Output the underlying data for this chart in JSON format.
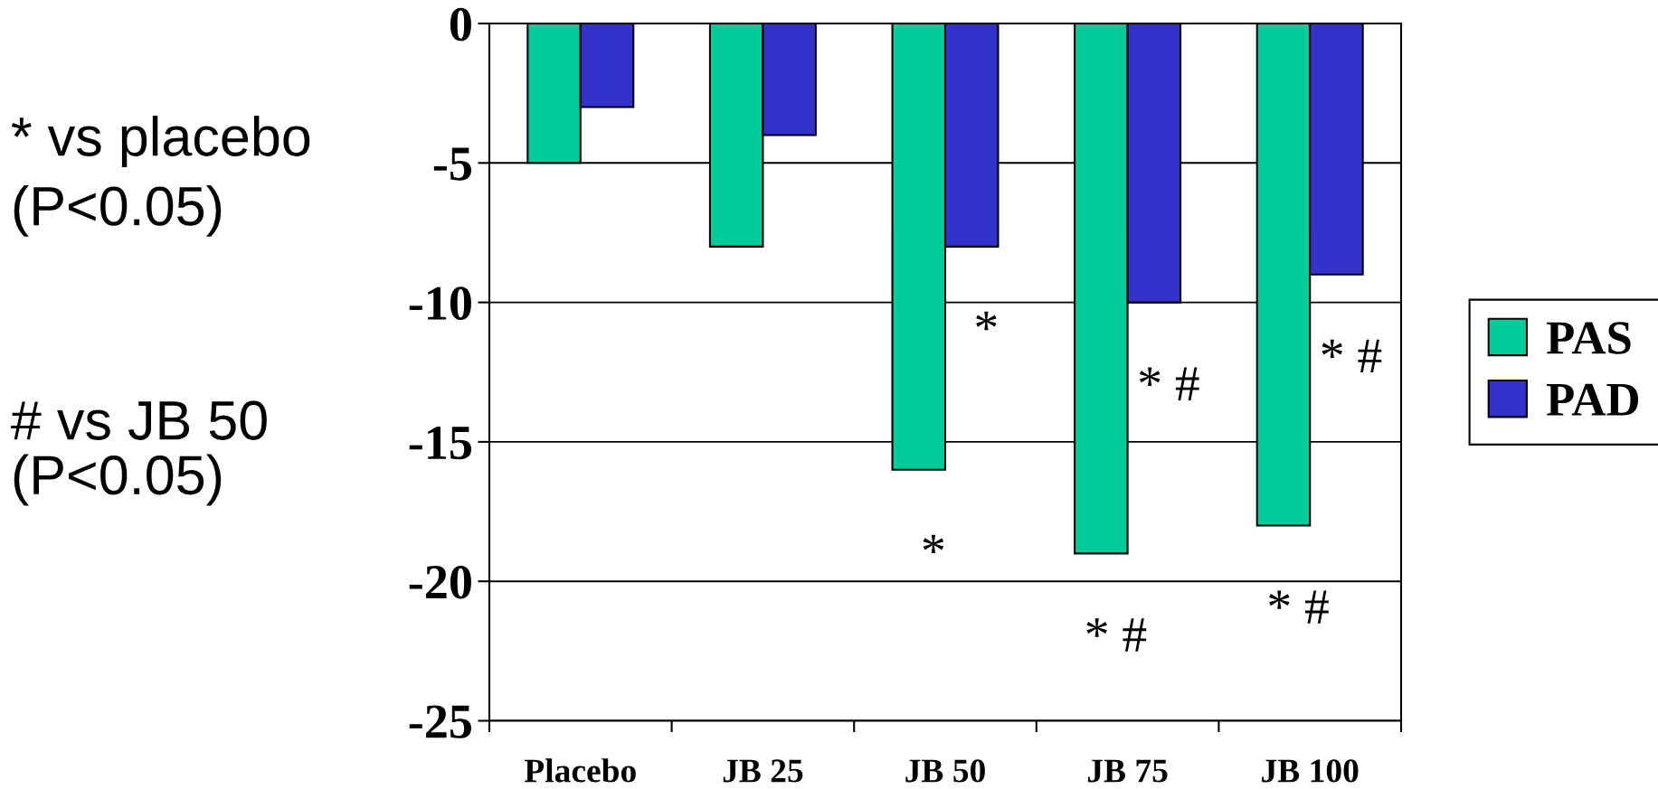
{
  "chart_data": {
    "type": "bar",
    "categories": [
      "Placebo",
      "JB 25",
      "JB 50",
      "JB 75",
      "JB 100"
    ],
    "series": [
      {
        "name": "PAS",
        "color": "#00cc99",
        "values": [
          -5,
          -8,
          -16,
          -19,
          -18
        ]
      },
      {
        "name": "PAD",
        "color": "#3333cc",
        "values": [
          -3,
          -4,
          -8,
          -10,
          -9
        ]
      }
    ],
    "ylim": [
      -25,
      0
    ],
    "yticks": [
      -25,
      -20,
      -15,
      -10,
      -5,
      0
    ],
    "grid": "y",
    "legend": "right",
    "annotations": [
      "* vs placebo\n(P<0.05)",
      "# vs JB 50\n(P<0.05)",
      {
        "text": "*",
        "x": "JB 50",
        "y": -8
      },
      {
        "text": "*",
        "x": "JB 50",
        "y": -16
      },
      {
        "text": "* #",
        "x": "JB 75",
        "y": -10
      },
      {
        "text": "* #",
        "x": "JB 75",
        "y": -19
      },
      {
        "text": "* #",
        "x": "JB 100",
        "y": -9
      },
      {
        "text": "* #",
        "x": "JB 100",
        "y": -18
      }
    ]
  }
}
